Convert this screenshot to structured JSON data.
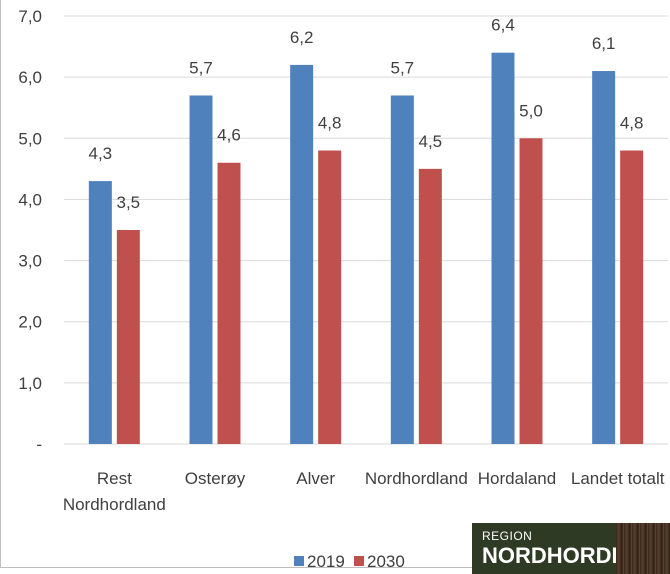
{
  "chart_data": {
    "type": "bar",
    "categories": [
      "Rest Nordhordland",
      "Osterøy",
      "Alver",
      "Nordhordland",
      "Hordaland",
      "Landet totalt"
    ],
    "category_lines": [
      [
        "Rest",
        "Nordhordland"
      ],
      [
        "Osterøy"
      ],
      [
        "Alver"
      ],
      [
        "Nordhordland"
      ],
      [
        "Hordaland"
      ],
      [
        "Landet totalt"
      ]
    ],
    "series": [
      {
        "name": "2019",
        "values": [
          4.3,
          5.7,
          6.2,
          5.7,
          6.4,
          6.1
        ],
        "labels": [
          "4,3",
          "5,7",
          "6,2",
          "5,7",
          "6,4",
          "6,1"
        ],
        "color": "#4f81bd"
      },
      {
        "name": "2030",
        "values": [
          3.5,
          4.6,
          4.8,
          4.5,
          5.0,
          4.8
        ],
        "labels": [
          "3,5",
          "4,6",
          "4,8",
          "4,5",
          "5,0",
          "4,8"
        ],
        "color": "#c0504d"
      }
    ],
    "ylim": [
      0,
      7
    ],
    "y_ticks": [
      0,
      1,
      2,
      3,
      4,
      5,
      6,
      7
    ],
    "y_tick_labels": [
      "-",
      "1,0",
      "2,0",
      "3,0",
      "4,0",
      "5,0",
      "6,0",
      "7,0"
    ],
    "gridlines": true,
    "legend_position": "bottom",
    "title": "",
    "xlabel": "",
    "ylabel": ""
  },
  "logo": {
    "small_text": "REGION",
    "big_text": "NORDHORDL"
  },
  "colors": {
    "grid": "#d9d9d9",
    "text": "#404040"
  }
}
